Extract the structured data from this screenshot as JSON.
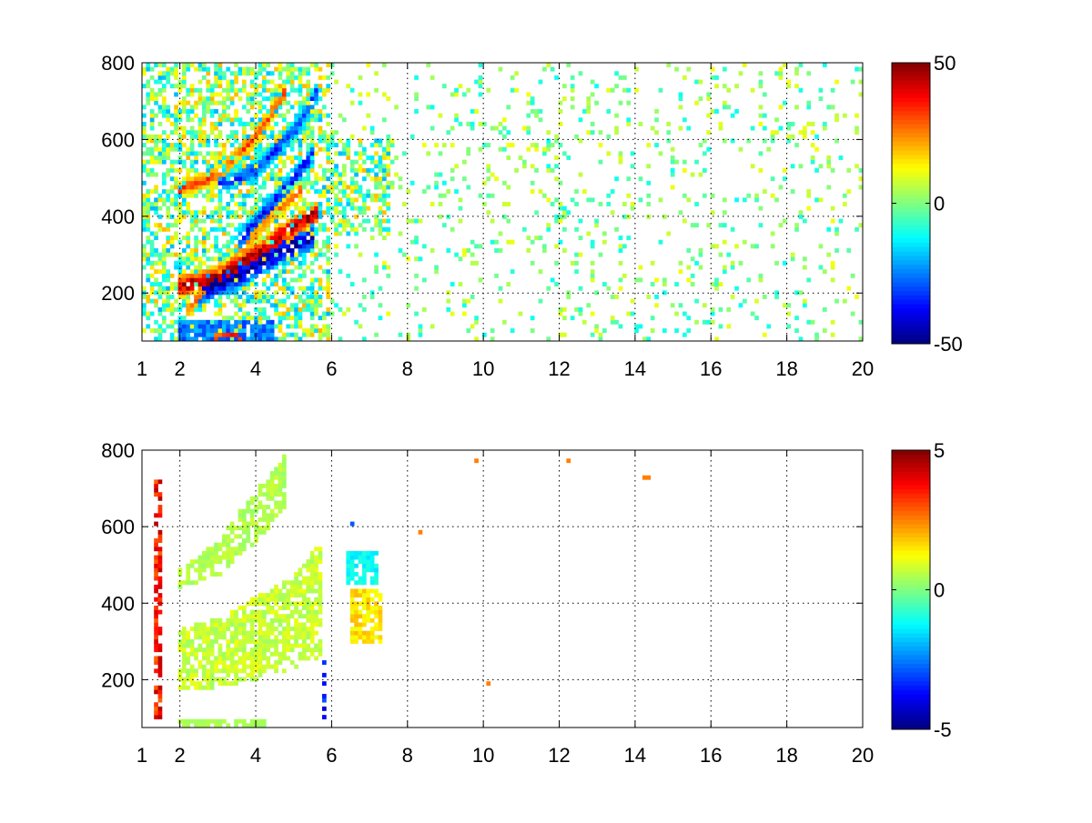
{
  "chart_data": [
    {
      "type": "heatmap",
      "title": "",
      "xlabel": "",
      "ylabel": "",
      "xlim": [
        1,
        20
      ],
      "ylim": [
        75,
        800
      ],
      "x_ticks": [
        1,
        2,
        4,
        6,
        8,
        10,
        12,
        14,
        16,
        18,
        20
      ],
      "y_ticks": [
        200,
        400,
        600,
        800
      ],
      "grid": true,
      "colormap": "jet",
      "colorbar": {
        "min": -50,
        "max": 50,
        "ticks": [
          50,
          0,
          -50
        ]
      },
      "features": [
        {
          "kind": "ridge",
          "x": [
            1.9,
            3.0,
            4.0,
            4.8,
            5.6
          ],
          "y": [
            215,
            240,
            300,
            360,
            410
          ],
          "value": 45,
          "width": 20
        },
        {
          "kind": "ridge",
          "x": [
            2.5,
            3.5,
            4.5,
            5.5
          ],
          "y": [
            205,
            245,
            300,
            345
          ],
          "value": -45,
          "width": 24
        },
        {
          "kind": "ridge",
          "x": [
            2.0,
            3.0,
            4.0,
            4.8
          ],
          "y": [
            470,
            510,
            610,
            730
          ],
          "value": 30,
          "width": 16
        },
        {
          "kind": "ridge",
          "x": [
            3.0,
            4.0,
            5.0,
            5.6
          ],
          "y": [
            480,
            520,
            620,
            720
          ],
          "value": -32,
          "width": 18
        },
        {
          "kind": "ridge",
          "x": [
            2.2,
            3.2,
            4.2,
            5.2
          ],
          "y": [
            160,
            260,
            380,
            470
          ],
          "value": 25,
          "width": 16
        },
        {
          "kind": "ridge",
          "x": [
            3.5,
            4.5,
            5.5
          ],
          "y": [
            330,
            440,
            560
          ],
          "value": -35,
          "width": 18
        },
        {
          "kind": "band",
          "x": [
            2.0,
            4.5
          ],
          "y": [
            80,
            130
          ],
          "value": -25
        },
        {
          "kind": "band",
          "x": [
            2.8,
            3.6
          ],
          "y": [
            80,
            100
          ],
          "value": 30
        },
        {
          "kind": "noise",
          "x": [
            1.0,
            6.0
          ],
          "y": [
            75,
            800
          ],
          "amplitude": 20,
          "density": 0.55
        },
        {
          "kind": "noise",
          "x": [
            6.0,
            7.5
          ],
          "y": [
            350,
            600
          ],
          "amplitude": 20,
          "density": 0.45
        },
        {
          "kind": "noise",
          "x": [
            6.0,
            20.0
          ],
          "y": [
            75,
            800
          ],
          "amplitude": 12,
          "density": 0.1
        }
      ]
    },
    {
      "type": "heatmap",
      "title": "",
      "xlabel": "",
      "ylabel": "",
      "xlim": [
        1,
        20
      ],
      "ylim": [
        75,
        800
      ],
      "x_ticks": [
        1,
        2,
        4,
        6,
        8,
        10,
        12,
        14,
        16,
        18,
        20
      ],
      "y_ticks": [
        200,
        400,
        600,
        800
      ],
      "grid": true,
      "colormap": "jet",
      "colorbar": {
        "min": -5,
        "max": 5,
        "ticks": [
          5,
          0,
          -5
        ]
      },
      "features": [
        {
          "kind": "region",
          "x": [
            1.9,
            3.0,
            4.0,
            5.0,
            5.7
          ],
          "ylo": [
            170,
            180,
            200,
            230,
            260
          ],
          "yhi": [
            330,
            360,
            420,
            470,
            560
          ],
          "value": 0.7,
          "density": 0.75
        },
        {
          "kind": "region",
          "x": [
            2.0,
            3.0,
            4.0,
            4.8
          ],
          "ylo": [
            440,
            470,
            560,
            650
          ],
          "yhi": [
            490,
            560,
            700,
            790
          ],
          "value": 0.5,
          "density": 0.7
        },
        {
          "kind": "band",
          "x": [
            2.0,
            4.3
          ],
          "y": [
            80,
            100
          ],
          "value": 0.4
        },
        {
          "kind": "band",
          "x": [
            6.4,
            7.2
          ],
          "y": [
            450,
            540
          ],
          "value": -1.2
        },
        {
          "kind": "band",
          "x": [
            6.5,
            7.3
          ],
          "y": [
            300,
            440
          ],
          "value": 1.5
        },
        {
          "kind": "streaks",
          "x": [
            1.42
          ],
          "ylo": 100,
          "yhi": 720,
          "value": 4.5
        },
        {
          "kind": "streaks",
          "x": [
            5.8
          ],
          "ylo": 75,
          "yhi": 250,
          "value": -4.5
        },
        {
          "kind": "streaks",
          "x": [
            6.5
          ],
          "ylo": 600,
          "yhi": 640,
          "value": -4
        },
        {
          "kind": "dots",
          "points": [
            [
              9.8,
              770
            ],
            [
              12.2,
              770
            ],
            [
              14.3,
              730
            ],
            [
              8.3,
              590
            ],
            [
              10.1,
              190
            ]
          ],
          "value": 2.5
        }
      ]
    }
  ]
}
